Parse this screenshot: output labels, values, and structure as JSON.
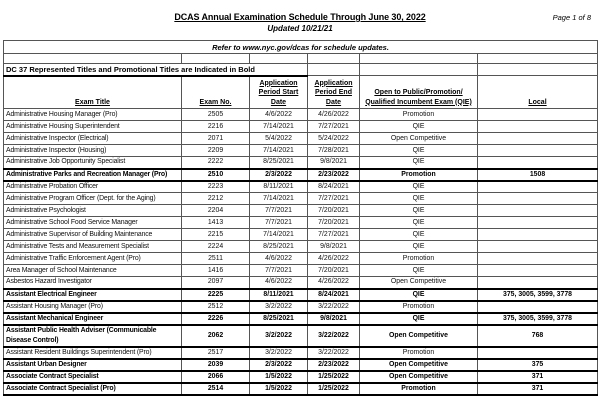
{
  "header": {
    "title": "DCAS Annual Examination Schedule Through June 30, 2022",
    "updated": "Updated 10/21/21",
    "page_indicator": "Page 1 of 8"
  },
  "notice": "Refer to www.nyc.gov/dcas for schedule updates.",
  "section_note": "DC 37 Represented Titles and Promotional Titles are Indicated in Bold",
  "colors": {
    "text": "#000000",
    "border": "#555555",
    "background": "#ffffff"
  },
  "table": {
    "columns": [
      {
        "lines": [
          "Exam Title"
        ]
      },
      {
        "lines": [
          "Exam No."
        ]
      },
      {
        "lines": [
          "Application",
          "Period Start",
          "Date"
        ]
      },
      {
        "lines": [
          "Application",
          "Period End",
          "Date"
        ]
      },
      {
        "lines": [
          "Open to Public/Promotion/",
          "Qualified Incumbent Exam (QIE)"
        ]
      },
      {
        "lines": [
          "Local"
        ]
      }
    ],
    "rows": [
      {
        "title": "Administrative Housing Manager (Pro)",
        "exam_no": "2505",
        "start_date": "4/6/2022",
        "end_date": "4/26/2022",
        "open_to": "Promotion",
        "local": "",
        "bold": false
      },
      {
        "title": "Administrative Housing Superintendent",
        "exam_no": "2216",
        "start_date": "7/14/2021",
        "end_date": "7/27/2021",
        "open_to": "QIE",
        "local": "",
        "bold": false
      },
      {
        "title": "Administrative Inspector (Electrical)",
        "exam_no": "2071",
        "start_date": "5/4/2022",
        "end_date": "5/24/2022",
        "open_to": "Open Competitive",
        "local": "",
        "bold": false
      },
      {
        "title": "Administrative Inspector (Housing)",
        "exam_no": "2209",
        "start_date": "7/14/2021",
        "end_date": "7/28/2021",
        "open_to": "QIE",
        "local": "",
        "bold": false
      },
      {
        "title": "Administrative Job Opportunity Specialist",
        "exam_no": "2222",
        "start_date": "8/25/2021",
        "end_date": "9/8/2021",
        "open_to": "QIE",
        "local": "",
        "bold": false
      },
      {
        "title": "Administrative Parks and Recreation Manager (Pro)",
        "exam_no": "2510",
        "start_date": "2/3/2022",
        "end_date": "2/23/2022",
        "open_to": "Promotion",
        "local": "1508",
        "bold": true
      },
      {
        "title": "Administrative Probation Officer",
        "exam_no": "2223",
        "start_date": "8/11/2021",
        "end_date": "8/24/2021",
        "open_to": "QIE",
        "local": "",
        "bold": false
      },
      {
        "title": "Administrative Program Officer (Dept. for the Aging)",
        "exam_no": "2212",
        "start_date": "7/14/2021",
        "end_date": "7/27/2021",
        "open_to": "QIE",
        "local": "",
        "bold": false
      },
      {
        "title": "Administrative Psychologist",
        "exam_no": "2204",
        "start_date": "7/7/2021",
        "end_date": "7/20/2021",
        "open_to": "QIE",
        "local": "",
        "bold": false
      },
      {
        "title": "Administrative School Food Service Manager",
        "exam_no": "1413",
        "start_date": "7/7/2021",
        "end_date": "7/20/2021",
        "open_to": "QIE",
        "local": "",
        "bold": false
      },
      {
        "title": "Administrative Supervisor of Building Maintenance",
        "exam_no": "2215",
        "start_date": "7/14/2021",
        "end_date": "7/27/2021",
        "open_to": "QIE",
        "local": "",
        "bold": false
      },
      {
        "title": "Administrative Tests and Measurement Specialist",
        "exam_no": "2224",
        "start_date": "8/25/2021",
        "end_date": "9/8/2021",
        "open_to": "QIE",
        "local": "",
        "bold": false
      },
      {
        "title": "Administrative Traffic Enforcement Agent (Pro)",
        "exam_no": "2511",
        "start_date": "4/6/2022",
        "end_date": "4/26/2022",
        "open_to": "Promotion",
        "local": "",
        "bold": false
      },
      {
        "title": "Area Manager of School Maintenance",
        "exam_no": "1416",
        "start_date": "7/7/2021",
        "end_date": "7/20/2021",
        "open_to": "QIE",
        "local": "",
        "bold": false
      },
      {
        "title": "Asbestos Hazard Investigator",
        "exam_no": "2097",
        "start_date": "4/6/2022",
        "end_date": "4/26/2022",
        "open_to": "Open Competitive",
        "local": "",
        "bold": false
      },
      {
        "title": "Assistant Electrical Engineer",
        "exam_no": "2225",
        "start_date": "8/11/2021",
        "end_date": "8/24/2021",
        "open_to": "QIE",
        "local": "375, 3005, 3599, 3778",
        "bold": true
      },
      {
        "title": "Assistant Housing Manager (Pro)",
        "exam_no": "2512",
        "start_date": "3/2/2022",
        "end_date": "3/22/2022",
        "open_to": "Promotion",
        "local": "",
        "bold": false
      },
      {
        "title": "Assistant Mechanical Engineer",
        "exam_no": "2226",
        "start_date": "8/25/2021",
        "end_date": "9/8/2021",
        "open_to": "QIE",
        "local": "375, 3005, 3599, 3778",
        "bold": true
      },
      {
        "title": "Assistant Public Health Adviser (Communicable Disease Control)",
        "exam_no": "2062",
        "start_date": "3/2/2022",
        "end_date": "3/22/2022",
        "open_to": "Open Competitive",
        "local": "768",
        "bold": true
      },
      {
        "title": "Assistant Resident Buildings Superintendent (Pro)",
        "exam_no": "2517",
        "start_date": "3/2/2022",
        "end_date": "3/22/2022",
        "open_to": "Promotion",
        "local": "",
        "bold": false
      },
      {
        "title": "Assistant Urban Designer",
        "exam_no": "2039",
        "start_date": "2/3/2022",
        "end_date": "2/23/2022",
        "open_to": "Open Competitive",
        "local": "375",
        "bold": true
      },
      {
        "title": "Associate Contract Specialist",
        "exam_no": "2066",
        "start_date": "1/5/2022",
        "end_date": "1/25/2022",
        "open_to": "Open Competitive",
        "local": "371",
        "bold": true
      },
      {
        "title": "Associate Contract Specialist (Pro)",
        "exam_no": "2514",
        "start_date": "1/5/2022",
        "end_date": "1/25/2022",
        "open_to": "Promotion",
        "local": "371",
        "bold": true
      }
    ]
  }
}
